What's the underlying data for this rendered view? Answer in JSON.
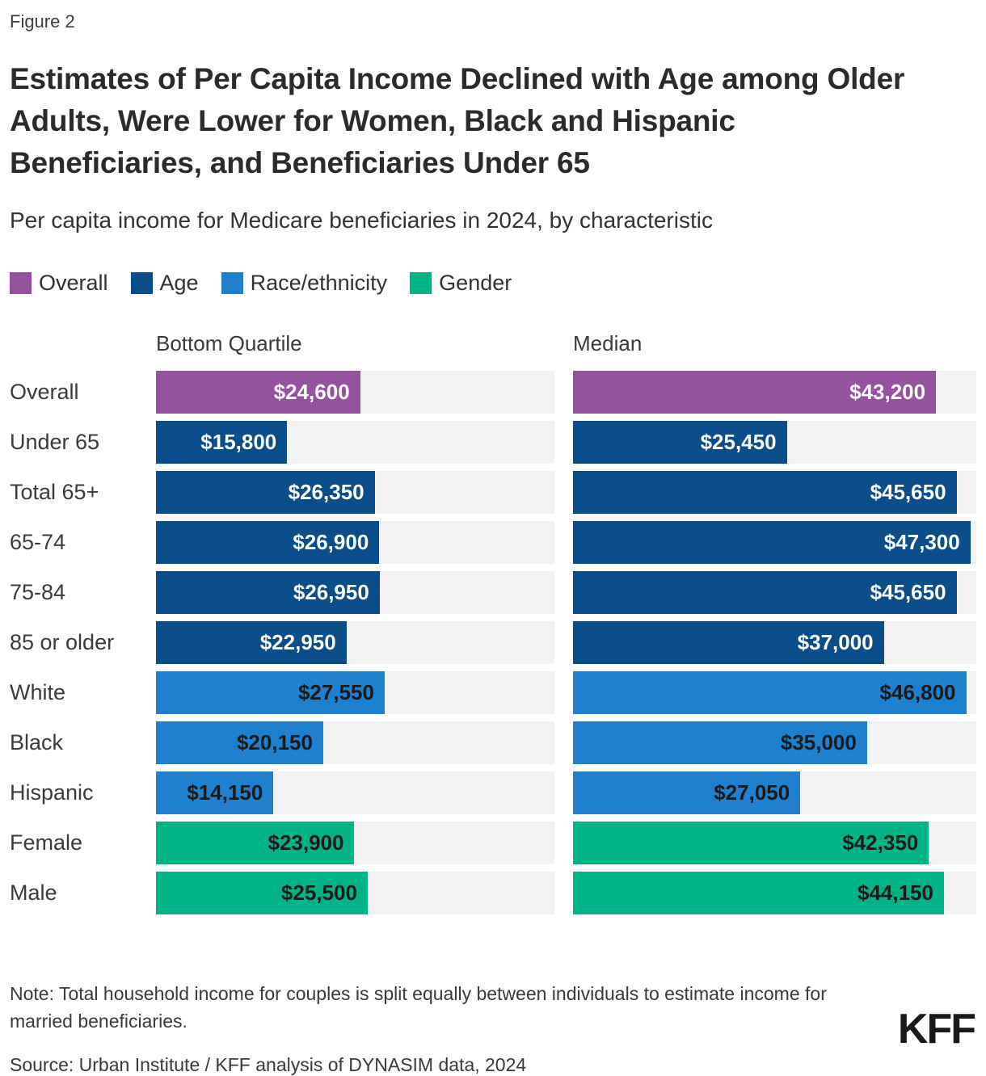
{
  "figure_label": "Figure 2",
  "title": "Estimates of Per Capita Income Declined with Age among Older Adults, Were Lower for Women, Black and Hispanic Beneficiaries, and Beneficiaries Under 65",
  "subtitle": "Per capita income for Medicare beneficiaries in 2024, by characteristic",
  "legend": [
    {
      "label": "Overall",
      "group": "Overall"
    },
    {
      "label": "Age",
      "group": "Age"
    },
    {
      "label": "Race/ethnicity",
      "group": "Race/ethnicity"
    },
    {
      "label": "Gender",
      "group": "Gender"
    }
  ],
  "columns": {
    "left": "Bottom Quartile",
    "right": "Median"
  },
  "colors": {
    "groups": {
      "Overall": {
        "bar": "#94519E",
        "text": "#ffffff"
      },
      "Age": {
        "bar": "#0B4D89",
        "text": "#ffffff"
      },
      "Race/ethnicity": {
        "bar": "#1F80D0",
        "text": "#1a1a1a"
      },
      "Gender": {
        "bar": "#00B386",
        "text": "#1a1a1a"
      }
    },
    "track": "#f2f2f2",
    "background": "#ffffff"
  },
  "chart_data": {
    "type": "bar",
    "orientation": "horizontal",
    "title": "Per capita income for Medicare beneficiaries in 2024, by characteristic",
    "categories": [
      "Overall",
      "Under 65",
      "Total 65+",
      "65-74",
      "75-84",
      "85 or older",
      "White",
      "Black",
      "Hispanic",
      "Female",
      "Male"
    ],
    "group_of_category": [
      "Overall",
      "Age",
      "Age",
      "Age",
      "Age",
      "Age",
      "Race/ethnicity",
      "Race/ethnicity",
      "Race/ethnicity",
      "Gender",
      "Gender"
    ],
    "series": [
      {
        "name": "Bottom Quartile",
        "values": [
          24600,
          15800,
          26350,
          26900,
          26950,
          22950,
          27550,
          20150,
          14150,
          23900,
          25500
        ],
        "labels": [
          "$24,600",
          "$15,800",
          "$26,350",
          "$26,900",
          "$26,950",
          "$22,950",
          "$27,550",
          "$20,150",
          "$14,150",
          "$23,900",
          "$25,500"
        ]
      },
      {
        "name": "Median",
        "values": [
          43200,
          25450,
          45650,
          47300,
          45650,
          37000,
          46800,
          35000,
          27050,
          42350,
          44150
        ],
        "labels": [
          "$43,200",
          "$25,450",
          "$45,650",
          "$47,300",
          "$45,650",
          "$37,000",
          "$46,800",
          "$35,000",
          "$27,050",
          "$42,350",
          "$44,150"
        ]
      }
    ],
    "xlim": [
      0,
      48000
    ],
    "grid": false,
    "legend_position": "top",
    "value_labels": "inside-end"
  },
  "note": "Note: Total household income for couples is split equally between individuals to estimate income for married beneficiaries.",
  "source": "Source: Urban Institute / KFF analysis of DYNASIM data, 2024",
  "logo": "KFF"
}
